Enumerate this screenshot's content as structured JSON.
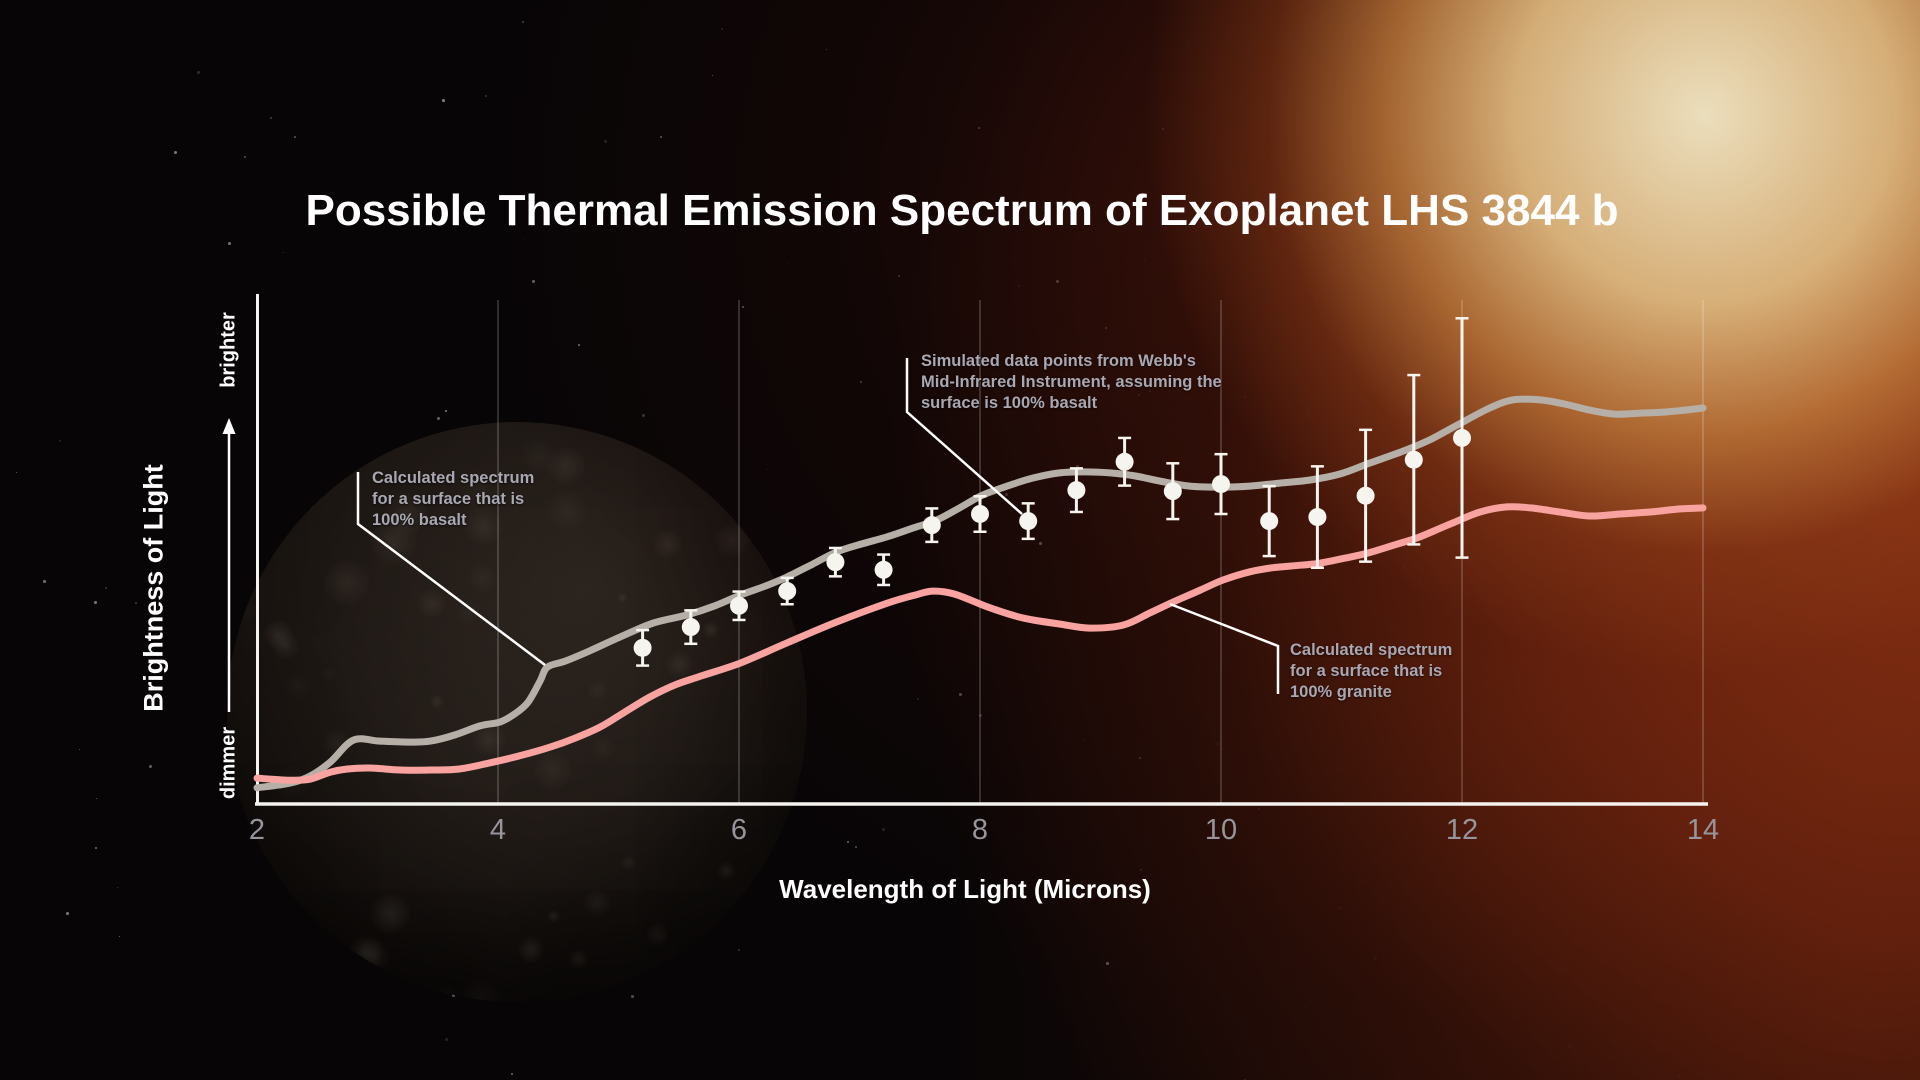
{
  "title": "Possible Thermal Emission Spectrum of Exoplanet LHS 3844 b",
  "axes": {
    "x_label": "Wavelength of Light (Microns)",
    "y_label": "Brightness of Light",
    "brighter": "brighter",
    "dimmer": "dimmer"
  },
  "annotations": {
    "webb_points": "Simulated data points from Webb's\nMid-Infrared Instrument, assuming the\nsurface is 100% basalt",
    "basalt_curve": "Calculated spectrum\nfor a surface that is\n100% basalt",
    "granite_curve": "Calculated spectrum\nfor a surface that is\n100% granite"
  },
  "colors": {
    "basalt_curve": "#b5afa8",
    "granite_curve": "#f8a3a0",
    "data_points": "#f6f4ee",
    "axis": "#f5f3ef",
    "gridline": "rgba(255,255,255,0.28)",
    "tick_label": "#96959b",
    "annotation_text": "#a8a7b2",
    "title_text": "#ffffff"
  },
  "chart_data": {
    "type": "line",
    "title": "Possible Thermal Emission Spectrum of Exoplanet LHS 3844 b",
    "xlabel": "Wavelength of Light (Microns)",
    "ylabel": "Brightness of Light",
    "xlim": [
      2,
      14
    ],
    "x_ticks": [
      2,
      4,
      6,
      8,
      10,
      12,
      14
    ],
    "y_axis_note": "y axis has no numeric ticks; values are relative brightness normalized 0 (axis origin, 'dimmer') to 1 (top of plot, toward 'brighter'), indicated by an upward arrow",
    "grid": "faint vertical gridlines at each x tick",
    "legend_position": "inline annotations with pointer lines",
    "series": [
      {
        "name": "Calculated spectrum for a surface that is 100% basalt",
        "color": "#b5afa8",
        "x": [
          2.0,
          2.27,
          2.44,
          2.61,
          2.8,
          3.02,
          3.27,
          3.44,
          3.64,
          3.85,
          4.02,
          4.14,
          4.25,
          4.35,
          4.41,
          4.56,
          4.76,
          5.01,
          5.29,
          5.57,
          5.8,
          6.01,
          6.22,
          6.4,
          6.61,
          6.81,
          7.02,
          7.23,
          7.44,
          7.64,
          7.83,
          8.02,
          8.25,
          8.44,
          8.66,
          8.87,
          9.08,
          9.29,
          9.49,
          9.74,
          9.99,
          10.24,
          10.49,
          10.74,
          10.99,
          11.24,
          11.49,
          11.73,
          11.98,
          12.23,
          12.42,
          12.65,
          12.85,
          13.06,
          13.27,
          13.48,
          13.68,
          13.85,
          14.0
        ],
        "y": [
          0.032,
          0.041,
          0.055,
          0.083,
          0.126,
          0.124,
          0.122,
          0.124,
          0.136,
          0.154,
          0.162,
          0.178,
          0.201,
          0.243,
          0.27,
          0.282,
          0.302,
          0.329,
          0.357,
          0.373,
          0.391,
          0.412,
          0.43,
          0.448,
          0.473,
          0.497,
          0.513,
          0.527,
          0.544,
          0.56,
          0.584,
          0.609,
          0.629,
          0.643,
          0.653,
          0.655,
          0.653,
          0.647,
          0.637,
          0.627,
          0.625,
          0.627,
          0.633,
          0.639,
          0.651,
          0.673,
          0.694,
          0.718,
          0.75,
          0.781,
          0.797,
          0.797,
          0.789,
          0.777,
          0.769,
          0.771,
          0.773,
          0.777,
          0.781
        ]
      },
      {
        "name": "Calculated spectrum for a surface that is 100% granite",
        "color": "#f8a3a0",
        "x": [
          2.0,
          2.27,
          2.44,
          2.61,
          2.75,
          2.94,
          3.19,
          3.44,
          3.68,
          3.93,
          4.18,
          4.43,
          4.64,
          4.85,
          5.05,
          5.26,
          5.47,
          5.68,
          6.01,
          6.4,
          6.81,
          7.23,
          7.46,
          7.61,
          7.79,
          8.06,
          8.29,
          8.44,
          8.66,
          8.91,
          9.19,
          9.41,
          9.6,
          9.83,
          10.02,
          10.24,
          10.43,
          10.66,
          10.82,
          11.03,
          11.22,
          11.44,
          11.63,
          11.82,
          11.94,
          12.15,
          12.37,
          12.57,
          12.81,
          13.06,
          13.31,
          13.56,
          13.81,
          14.0
        ],
        "y": [
          0.051,
          0.047,
          0.049,
          0.063,
          0.069,
          0.071,
          0.067,
          0.067,
          0.069,
          0.081,
          0.095,
          0.112,
          0.13,
          0.152,
          0.181,
          0.211,
          0.235,
          0.252,
          0.278,
          0.318,
          0.359,
          0.396,
          0.412,
          0.42,
          0.414,
          0.389,
          0.371,
          0.363,
          0.355,
          0.347,
          0.353,
          0.377,
          0.398,
          0.422,
          0.442,
          0.458,
          0.466,
          0.471,
          0.475,
          0.485,
          0.495,
          0.511,
          0.525,
          0.544,
          0.556,
          0.576,
          0.586,
          0.584,
          0.576,
          0.568,
          0.572,
          0.576,
          0.582,
          0.584
        ]
      }
    ],
    "scatter": {
      "name": "Simulated data points from Webb's Mid-Infrared Instrument, assuming the surface is 100% basalt",
      "color": "#f6f4ee",
      "x": [
        5.2,
        5.6,
        6.0,
        6.4,
        6.8,
        7.2,
        7.6,
        8.0,
        8.4,
        8.8,
        9.2,
        9.6,
        10.0,
        10.4,
        10.8,
        11.2,
        11.6,
        12.0
      ],
      "y": [
        0.308,
        0.349,
        0.391,
        0.42,
        0.477,
        0.462,
        0.55,
        0.572,
        0.558,
        0.619,
        0.675,
        0.617,
        0.631,
        0.558,
        0.566,
        0.608,
        0.679,
        0.722
      ],
      "yerr": [
        0.035,
        0.033,
        0.028,
        0.026,
        0.028,
        0.03,
        0.033,
        0.035,
        0.035,
        0.043,
        0.047,
        0.055,
        0.059,
        0.069,
        0.1,
        0.13,
        0.167,
        0.236
      ]
    }
  }
}
